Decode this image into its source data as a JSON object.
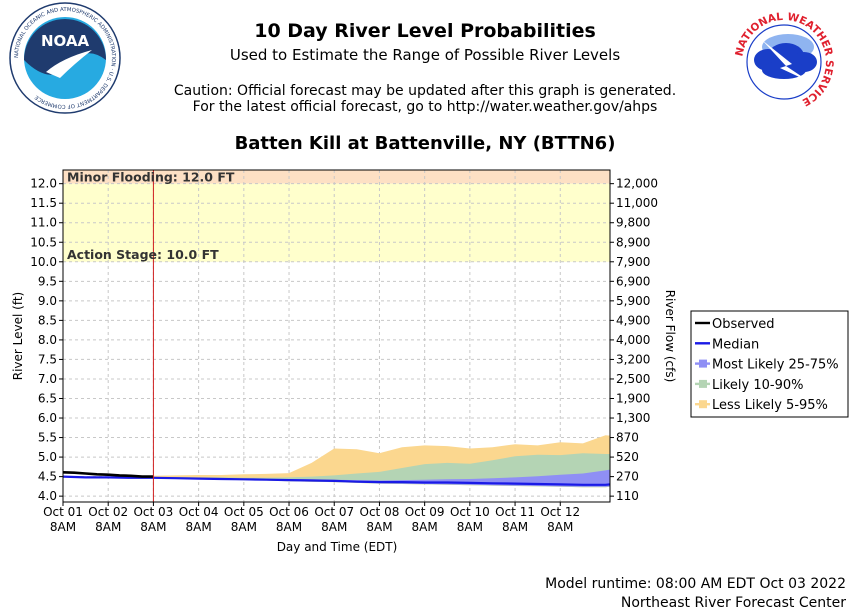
{
  "header": {
    "title": "10 Day River Level Probabilities",
    "subtitle": "Used to Estimate the Range of Possible River Levels",
    "caution_line1": "Caution: Official forecast may be updated after this graph is generated.",
    "caution_line2": "For the latest official forecast, go to http://water.weather.gov/ahps",
    "station": "Batten Kill at Battenville, NY (BTTN6)"
  },
  "logos": {
    "noaa": {
      "center_text": "NOAA",
      "ring_text": "NATIONAL OCEANIC AND ATMOSPHERIC ADMINISTRATION · U.S. DEPARTMENT OF COMMERCE",
      "colors": {
        "dark": "#1f3b6e",
        "light": "#27aae1"
      }
    },
    "nws": {
      "ring_text": "NATIONAL WEATHER SERVICE",
      "colors": {
        "text": "#e0202e",
        "cloud": "#1a3ec8"
      }
    }
  },
  "footer": {
    "runtime": "Model runtime: 08:00 AM EDT Oct 03 2022",
    "center": "Northeast River Forecast Center"
  },
  "chart_data": {
    "type": "line",
    "ylabel": "River Level (ft)",
    "y2label": "River Flow (cfs)",
    "xlabel": "Day and Time (EDT)",
    "ylim": [
      3.85,
      12.35
    ],
    "xlim": [
      0,
      12.1
    ],
    "grid": true,
    "legend_position": "right",
    "yticks": [
      "4.0",
      "4.5",
      "5.0",
      "5.5",
      "6.0",
      "6.5",
      "7.0",
      "7.5",
      "8.0",
      "8.5",
      "9.0",
      "9.5",
      "10.0",
      "10.5",
      "11.0",
      "11.5",
      "12.0"
    ],
    "y2ticks": [
      "110",
      "270",
      "520",
      "870",
      "1,300",
      "1,900",
      "2,500",
      "3,200",
      "4,000",
      "4,900",
      "5,900",
      "6,900",
      "7,900",
      "8,900",
      "9,800",
      "11,000",
      "12,000"
    ],
    "xticks": [
      {
        "line1": "Oct 01",
        "line2": "8AM"
      },
      {
        "line1": "Oct 02",
        "line2": "8AM"
      },
      {
        "line1": "Oct 03",
        "line2": "8AM"
      },
      {
        "line1": "Oct 04",
        "line2": "8AM"
      },
      {
        "line1": "Oct 05",
        "line2": "8AM"
      },
      {
        "line1": "Oct 06",
        "line2": "8AM"
      },
      {
        "line1": "Oct 07",
        "line2": "8AM"
      },
      {
        "line1": "Oct 08",
        "line2": "8AM"
      },
      {
        "line1": "Oct 09",
        "line2": "8AM"
      },
      {
        "line1": "Oct 10",
        "line2": "8AM"
      },
      {
        "line1": "Oct 11",
        "line2": "8AM"
      },
      {
        "line1": "Oct 12",
        "line2": "8AM"
      }
    ],
    "forecast_start": 2,
    "thresholds": [
      {
        "label": "Minor Flooding: 12.0 FT",
        "value": 12.0,
        "color": "#fde0c4"
      },
      {
        "label": "Action Stage: 10.0 FT",
        "value": 10.0,
        "color": "#ffffcc"
      }
    ],
    "x": [
      0,
      0.5,
      1,
      1.5,
      2,
      2.5,
      3,
      3.5,
      4,
      4.5,
      5,
      5.5,
      6,
      6.5,
      7,
      7.5,
      8,
      8.5,
      9,
      9.5,
      10,
      10.5,
      11,
      11.5,
      12,
      12.1
    ],
    "observed": {
      "x": [
        0,
        0.25,
        0.5,
        0.75,
        1,
        1.25,
        1.5,
        1.75,
        2
      ],
      "y": [
        4.61,
        4.6,
        4.58,
        4.56,
        4.55,
        4.53,
        4.52,
        4.5,
        4.5
      ]
    },
    "median": [
      4.5,
      4.48,
      4.48,
      4.47,
      4.47,
      4.46,
      4.45,
      4.44,
      4.43,
      4.42,
      4.41,
      4.4,
      4.39,
      4.37,
      4.36,
      4.36,
      4.35,
      4.35,
      4.34,
      4.33,
      4.32,
      4.31,
      4.3,
      4.29,
      4.29,
      4.3
    ],
    "series": [
      {
        "name": "Observed",
        "color": "#000000",
        "kind": "line"
      },
      {
        "name": "Median",
        "color": "#1a1ae6",
        "kind": "line"
      },
      {
        "name": "Most Likely 25-75%",
        "color": "#8f8ff5",
        "kind": "band",
        "low": [
          4.5,
          4.48,
          4.47,
          4.46,
          4.46,
          4.45,
          4.44,
          4.43,
          4.42,
          4.41,
          4.39,
          4.38,
          4.37,
          4.35,
          4.33,
          4.32,
          4.31,
          4.3,
          4.29,
          4.28,
          4.27,
          4.26,
          4.25,
          4.24,
          4.24,
          4.25
        ],
        "high": [
          4.5,
          4.49,
          4.49,
          4.48,
          4.48,
          4.47,
          4.47,
          4.46,
          4.45,
          4.44,
          4.44,
          4.43,
          4.42,
          4.41,
          4.4,
          4.41,
          4.42,
          4.43,
          4.44,
          4.46,
          4.48,
          4.51,
          4.55,
          4.58,
          4.66,
          4.68
        ]
      },
      {
        "name": "Likely 10-90%",
        "color": "#b4d4b4",
        "kind": "band",
        "low": [
          4.5,
          4.47,
          4.46,
          4.45,
          4.45,
          4.44,
          4.43,
          4.42,
          4.41,
          4.4,
          4.38,
          4.37,
          4.36,
          4.34,
          4.32,
          4.31,
          4.3,
          4.29,
          4.28,
          4.27,
          4.26,
          4.25,
          4.24,
          4.23,
          4.23,
          4.24
        ],
        "high": [
          4.5,
          4.49,
          4.49,
          4.49,
          4.49,
          4.49,
          4.48,
          4.48,
          4.47,
          4.47,
          4.48,
          4.5,
          4.53,
          4.58,
          4.62,
          4.72,
          4.82,
          4.85,
          4.83,
          4.92,
          5.02,
          5.06,
          5.05,
          5.1,
          5.08,
          5.08
        ]
      },
      {
        "name": "Less Likely 5-95%",
        "color": "#fbd78f",
        "kind": "band",
        "low": [
          4.5,
          4.47,
          4.46,
          4.45,
          4.45,
          4.44,
          4.43,
          4.42,
          4.41,
          4.4,
          4.38,
          4.37,
          4.36,
          4.34,
          4.32,
          4.31,
          4.3,
          4.29,
          4.28,
          4.27,
          4.26,
          4.25,
          4.24,
          4.23,
          4.23,
          4.24
        ],
        "high": [
          4.5,
          4.5,
          4.5,
          4.51,
          4.52,
          4.53,
          4.54,
          4.54,
          4.56,
          4.57,
          4.59,
          4.85,
          5.22,
          5.2,
          5.1,
          5.25,
          5.3,
          5.28,
          5.22,
          5.25,
          5.33,
          5.3,
          5.38,
          5.35,
          5.56,
          5.55
        ]
      }
    ]
  }
}
